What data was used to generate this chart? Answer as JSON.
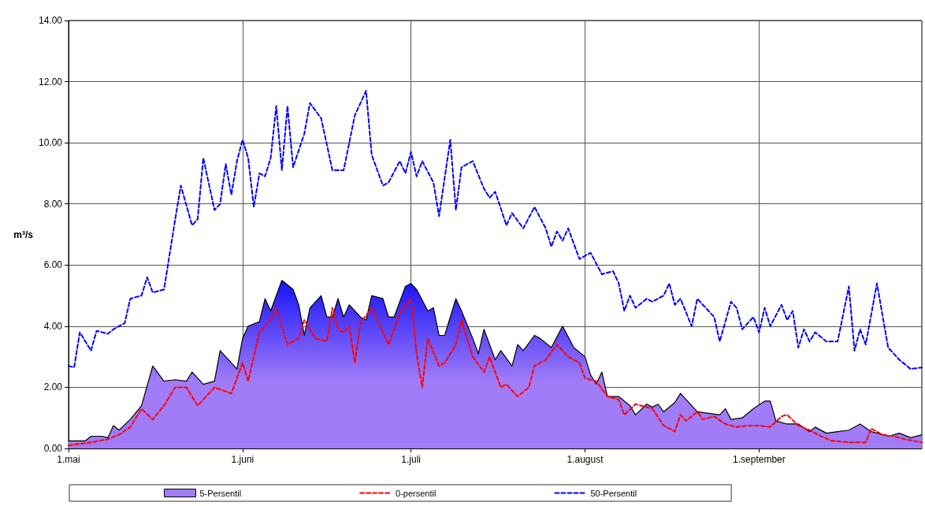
{
  "chart_data": {
    "type": "line",
    "ylabel": "m³/s",
    "xlim": [
      "--05-01",
      "--09-30"
    ],
    "xticks": [
      {
        "value": "--05-01",
        "label": "1.mai"
      },
      {
        "value": "--06-01",
        "label": "1.juni"
      },
      {
        "value": "--07-01",
        "label": "1.juli"
      },
      {
        "value": "--08-01",
        "label": "1.august"
      },
      {
        "value": "--09-01",
        "label": "1.september"
      }
    ],
    "ylim": [
      0,
      14
    ],
    "yticks": [
      {
        "value": 0,
        "label": "0.00"
      },
      {
        "value": 2,
        "label": "2.00"
      },
      {
        "value": 4,
        "label": "4.00"
      },
      {
        "value": 6,
        "label": "6.00"
      },
      {
        "value": 8,
        "label": "8.00"
      },
      {
        "value": 10,
        "label": "10.00"
      },
      {
        "value": 12,
        "label": "12.00"
      },
      {
        "value": 14,
        "label": "14.00"
      }
    ],
    "grid": true,
    "legend": "bottom",
    "marker": "none",
    "series": [
      {
        "name": "5-Persentil",
        "type": "area",
        "color": "#a07cf8",
        "line_style": "solid",
        "x": [
          "--05-01",
          "--05-04",
          "--05-05",
          "--05-07",
          "--05-08",
          "--05-09",
          "--05-10",
          "--05-12",
          "--05-14",
          "--05-16",
          "--05-18",
          "--05-20",
          "--05-22",
          "--05-23",
          "--05-25",
          "--05-27",
          "--05-28",
          "--05-31",
          "--06-01",
          "--06-02",
          "--06-04",
          "--06-05",
          "--06-06",
          "--06-08",
          "--06-10",
          "--06-11",
          "--06-12",
          "--06-13",
          "--06-15",
          "--06-16",
          "--06-17",
          "--06-18",
          "--06-19",
          "--06-20",
          "--06-22",
          "--06-23",
          "--06-24",
          "--06-26",
          "--06-27",
          "--06-28",
          "--06-30",
          "--07-01",
          "--07-02",
          "--07-04",
          "--07-05",
          "--07-06",
          "--07-07",
          "--07-09",
          "--07-10",
          "--07-12",
          "--07-13",
          "--07-14",
          "--07-16",
          "--07-17",
          "--07-19",
          "--07-20",
          "--07-21",
          "--07-23",
          "--07-24",
          "--07-26",
          "--07-28",
          "--07-30",
          "--08-01",
          "--08-02",
          "--08-03",
          "--08-04",
          "--08-05",
          "--08-07",
          "--08-09",
          "--08-10",
          "--08-12",
          "--08-13",
          "--08-14",
          "--08-15",
          "--08-17",
          "--08-18",
          "--08-20",
          "--08-21",
          "--08-23",
          "--08-25",
          "--08-26",
          "--08-27",
          "--08-29",
          "--08-31",
          "--09-02",
          "--09-03",
          "--09-04",
          "--09-06",
          "--09-08",
          "--09-10",
          "--09-11",
          "--09-13",
          "--09-15",
          "--09-17",
          "--09-19",
          "--09-21",
          "--09-24",
          "--09-26",
          "--09-28",
          "--09-30"
        ],
        "values": [
          0.25,
          0.25,
          0.4,
          0.4,
          0.35,
          0.75,
          0.6,
          0.95,
          1.4,
          2.7,
          2.2,
          2.25,
          2.2,
          2.5,
          2.1,
          2.2,
          3.2,
          2.6,
          3.6,
          4.0,
          4.15,
          4.9,
          4.5,
          5.5,
          5.2,
          4.7,
          3.7,
          4.6,
          5.0,
          4.3,
          4.3,
          4.9,
          4.3,
          4.7,
          4.3,
          4.2,
          5.0,
          4.9,
          4.3,
          4.3,
          5.3,
          5.4,
          5.2,
          4.5,
          4.6,
          3.7,
          3.7,
          4.9,
          4.5,
          3.6,
          3.1,
          3.9,
          2.9,
          3.2,
          2.7,
          3.4,
          3.2,
          3.7,
          3.6,
          3.3,
          4.0,
          3.3,
          3.0,
          2.4,
          2.1,
          2.5,
          1.7,
          1.7,
          1.4,
          1.1,
          1.45,
          1.35,
          1.45,
          1.2,
          1.5,
          1.8,
          1.4,
          1.2,
          1.15,
          1.1,
          1.3,
          0.95,
          1.0,
          1.3,
          1.55,
          1.55,
          0.9,
          0.8,
          0.8,
          0.55,
          0.7,
          0.5,
          0.55,
          0.6,
          0.8,
          0.55,
          0.4,
          0.5,
          0.35,
          0.45
        ]
      },
      {
        "name": "0-persentil",
        "color": "#ff0000",
        "line_style": "dashed",
        "x": [
          "--05-01",
          "--05-05",
          "--05-08",
          "--05-10",
          "--05-12",
          "--05-14",
          "--05-16",
          "--05-18",
          "--05-20",
          "--05-22",
          "--05-24",
          "--05-27",
          "--05-30",
          "--06-01",
          "--06-02",
          "--06-04",
          "--06-06",
          "--06-07",
          "--06-09",
          "--06-11",
          "--06-12",
          "--06-14",
          "--06-16",
          "--06-17",
          "--06-18",
          "--06-19",
          "--06-20",
          "--06-21",
          "--06-22",
          "--06-24",
          "--06-26",
          "--06-27",
          "--06-29",
          "--07-01",
          "--07-02",
          "--07-03",
          "--07-04",
          "--07-06",
          "--07-07",
          "--07-09",
          "--07-10",
          "--07-12",
          "--07-14",
          "--07-15",
          "--07-17",
          "--07-18",
          "--07-20",
          "--07-22",
          "--07-23",
          "--07-25",
          "--07-27",
          "--07-29",
          "--07-31",
          "--08-01",
          "--08-03",
          "--08-05",
          "--08-07",
          "--08-08",
          "--08-10",
          "--08-13",
          "--08-15",
          "--08-17",
          "--08-18",
          "--08-19",
          "--08-21",
          "--08-22",
          "--08-24",
          "--08-26",
          "--08-28",
          "--08-30",
          "--09-01",
          "--09-03",
          "--09-05",
          "--09-06",
          "--09-08",
          "--09-10",
          "--09-12",
          "--09-14",
          "--09-17",
          "--09-20",
          "--09-21",
          "--09-23",
          "--09-25",
          "--09-27",
          "--09-30"
        ],
        "values": [
          0.1,
          0.2,
          0.3,
          0.45,
          0.7,
          1.3,
          0.95,
          1.4,
          2.0,
          2.0,
          1.4,
          2.0,
          1.8,
          2.8,
          2.2,
          3.8,
          4.2,
          4.6,
          3.4,
          3.6,
          4.2,
          3.6,
          3.5,
          4.6,
          3.9,
          3.8,
          4.0,
          2.8,
          4.1,
          4.6,
          3.8,
          3.4,
          4.4,
          4.9,
          3.1,
          2.0,
          3.6,
          2.7,
          2.8,
          3.4,
          4.2,
          3.0,
          2.5,
          3.0,
          2.0,
          2.1,
          1.7,
          2.0,
          2.7,
          2.9,
          3.4,
          3.0,
          2.8,
          2.3,
          2.2,
          1.7,
          1.6,
          1.1,
          1.45,
          1.3,
          0.75,
          0.55,
          1.1,
          0.9,
          1.2,
          0.95,
          1.05,
          0.8,
          0.7,
          0.75,
          0.75,
          0.7,
          1.05,
          1.1,
          0.75,
          0.6,
          0.4,
          0.25,
          0.2,
          0.2,
          0.65,
          0.45,
          0.4,
          0.3,
          0.2
        ]
      },
      {
        "name": "50-Persentil",
        "color": "#0000ff",
        "line_style": "dashed",
        "x": [
          "--05-01",
          "--05-02",
          "--05-03",
          "--05-05",
          "--05-06",
          "--05-08",
          "--05-09",
          "--05-11",
          "--05-12",
          "--05-14",
          "--05-15",
          "--05-16",
          "--05-18",
          "--05-20",
          "--05-21",
          "--05-23",
          "--05-24",
          "--05-25",
          "--05-27",
          "--05-28",
          "--05-29",
          "--05-30",
          "--05-31",
          "--06-01",
          "--06-02",
          "--06-03",
          "--06-04",
          "--06-05",
          "--06-06",
          "--06-07",
          "--06-08",
          "--06-09",
          "--06-10",
          "--06-12",
          "--06-13",
          "--06-15",
          "--06-17",
          "--06-19",
          "--06-21",
          "--06-23",
          "--06-24",
          "--06-26",
          "--06-27",
          "--06-29",
          "--06-30",
          "--07-01",
          "--07-02",
          "--07-03",
          "--07-05",
          "--07-06",
          "--07-08",
          "--07-09",
          "--07-10",
          "--07-12",
          "--07-14",
          "--07-15",
          "--07-16",
          "--07-18",
          "--07-19",
          "--07-21",
          "--07-23",
          "--07-25",
          "--07-26",
          "--07-27",
          "--07-28",
          "--07-29",
          "--07-31",
          "--08-02",
          "--08-04",
          "--08-06",
          "--08-07",
          "--08-08",
          "--08-09",
          "--08-10",
          "--08-12",
          "--08-13",
          "--08-15",
          "--08-16",
          "--08-17",
          "--08-18",
          "--08-20",
          "--08-21",
          "--08-23",
          "--08-24",
          "--08-25",
          "--08-27",
          "--08-28",
          "--08-29",
          "--08-31",
          "--09-01",
          "--09-02",
          "--09-03",
          "--09-05",
          "--09-06",
          "--09-07",
          "--09-08",
          "--09-09",
          "--09-10",
          "--09-11",
          "--09-13",
          "--09-15",
          "--09-17",
          "--09-18",
          "--09-19",
          "--09-20",
          "--09-22",
          "--09-24",
          "--09-26",
          "--09-28",
          "--09-30"
        ],
        "values": [
          2.7,
          2.65,
          3.8,
          3.2,
          3.85,
          3.75,
          3.9,
          4.1,
          4.9,
          5.0,
          5.6,
          5.1,
          5.2,
          7.5,
          8.6,
          7.3,
          7.5,
          9.5,
          7.8,
          8.0,
          9.3,
          8.3,
          9.4,
          10.1,
          9.5,
          7.9,
          9.0,
          8.9,
          9.5,
          11.2,
          9.1,
          11.2,
          9.2,
          10.3,
          11.3,
          10.8,
          9.1,
          9.1,
          10.9,
          11.7,
          9.6,
          8.6,
          8.7,
          9.4,
          9.0,
          9.7,
          8.9,
          9.4,
          8.7,
          7.6,
          10.1,
          7.8,
          9.2,
          9.4,
          8.5,
          8.2,
          8.4,
          7.3,
          7.7,
          7.2,
          7.9,
          7.2,
          6.6,
          7.1,
          6.8,
          7.2,
          6.2,
          6.4,
          5.7,
          5.8,
          5.4,
          4.5,
          5.0,
          4.6,
          4.9,
          4.8,
          5.0,
          5.4,
          4.7,
          4.9,
          4.0,
          4.9,
          4.5,
          4.3,
          3.5,
          4.8,
          4.6,
          3.9,
          4.3,
          3.8,
          4.6,
          4.0,
          4.7,
          4.2,
          4.5,
          3.3,
          3.9,
          3.5,
          3.8,
          3.5,
          3.5,
          5.3,
          3.2,
          3.9,
          3.4,
          5.4,
          3.3,
          2.9,
          2.6,
          2.65
        ]
      }
    ]
  }
}
